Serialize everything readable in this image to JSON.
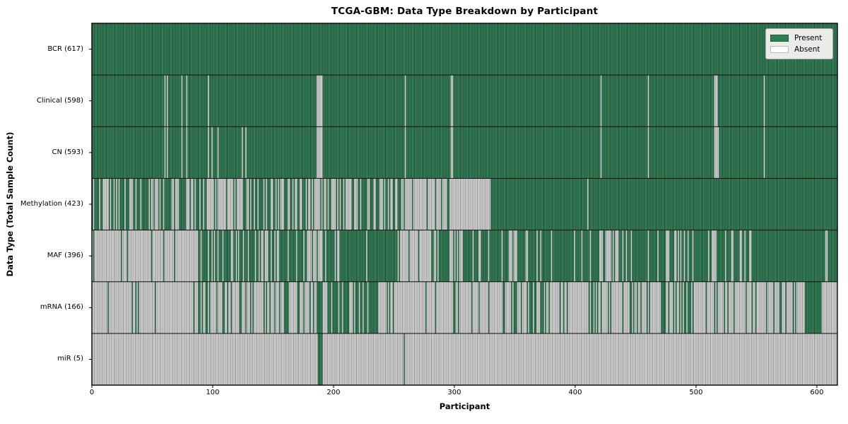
{
  "title": "TCGA-GBM: Data Type Breakdown by Participant",
  "xlabel": "Participant",
  "ylabel": "Data Type (Total Sample Count)",
  "legend": {
    "present_label": "Present",
    "absent_label": "Absent"
  },
  "colors": {
    "present": "#2e7e54",
    "present_edge": "#1f5a3a",
    "absent": "#ffffff",
    "absent_edge": "#8f8f8f",
    "row_separator": "#111111",
    "plot_border": "#000000",
    "legend_bg": "#e9ece9",
    "legend_border": "#a8a8a8"
  },
  "chart_data": {
    "type": "heatmap",
    "title": "TCGA-GBM: Data Type Breakdown by Participant",
    "xlabel": "Participant",
    "ylabel": "Data Type (Total Sample Count)",
    "legend_entries": [
      "Present",
      "Absent"
    ],
    "legend_position": "upper right",
    "n_participants": 617,
    "x_range": [
      0,
      617
    ],
    "x_ticks": [
      0,
      100,
      200,
      300,
      400,
      500,
      600
    ],
    "cell_states": [
      "present",
      "absent"
    ],
    "rows": [
      {
        "label": "BCR (617)",
        "data_type": "BCR",
        "present_count": 617,
        "pattern": {
          "type": "all_present"
        }
      },
      {
        "label": "Clinical (598)",
        "data_type": "Clinical",
        "present_count": 598,
        "pattern": {
          "type": "present_except",
          "absent": [
            60,
            62,
            74,
            78,
            96,
            186,
            187,
            188,
            189,
            190,
            259,
            297,
            298,
            421,
            460,
            515,
            516,
            517,
            556
          ]
        }
      },
      {
        "label": "CN (593)",
        "data_type": "CN",
        "present_count": 593,
        "pattern": {
          "type": "present_except",
          "absent": [
            60,
            62,
            74,
            78,
            96,
            99,
            104,
            124,
            127,
            186,
            187,
            188,
            189,
            190,
            259,
            297,
            298,
            421,
            460,
            515,
            516,
            517,
            518,
            556
          ]
        }
      },
      {
        "label": "Methylation (423)",
        "data_type": "Methylation",
        "present_count": 423,
        "pattern": {
          "type": "segments",
          "segments": [
            [
              0,
              95,
              57
            ],
            [
              95,
              125,
              5
            ],
            [
              125,
              165,
              24
            ],
            [
              165,
              230,
              29
            ],
            [
              230,
              260,
              16
            ],
            [
              260,
              310,
              6
            ],
            [
              310,
              330,
              0
            ],
            [
              330,
              410,
              80
            ],
            [
              410,
              411,
              0
            ],
            [
              411,
              617,
              206
            ]
          ]
        }
      },
      {
        "label": "MAF (396)",
        "data_type": "MAF",
        "present_count": 396,
        "pattern": {
          "type": "segments",
          "segments": [
            [
              0,
              88,
              6
            ],
            [
              88,
              140,
              38
            ],
            [
              140,
              155,
              6
            ],
            [
              155,
              178,
              20
            ],
            [
              178,
              198,
              8
            ],
            [
              198,
              255,
              52
            ],
            [
              255,
              282,
              3
            ],
            [
              282,
              310,
              17
            ],
            [
              310,
              345,
              30
            ],
            [
              345,
              352,
              1
            ],
            [
              352,
              420,
              60
            ],
            [
              420,
              437,
              5
            ],
            [
              437,
              550,
              85
            ],
            [
              550,
              617,
              65
            ]
          ]
        }
      },
      {
        "label": "mRNA (166)",
        "data_type": "mRNA",
        "present_count": 166,
        "pattern": {
          "type": "segments",
          "segments": [
            [
              0,
              88,
              6
            ],
            [
              88,
              185,
              30
            ],
            [
              185,
              200,
              9
            ],
            [
              200,
              237,
              28
            ],
            [
              237,
              310,
              8
            ],
            [
              310,
              360,
              10
            ],
            [
              360,
              377,
              10
            ],
            [
              377,
              470,
              20
            ],
            [
              470,
              505,
              15
            ],
            [
              505,
              560,
              10
            ],
            [
              560,
              590,
              6
            ],
            [
              590,
              605,
              14
            ],
            [
              605,
              617,
              0
            ]
          ]
        }
      },
      {
        "label": "miR (5)",
        "data_type": "miR",
        "present_count": 5,
        "pattern": {
          "type": "absent_except",
          "present": [
            187,
            188,
            189,
            190,
            258
          ]
        }
      }
    ]
  }
}
